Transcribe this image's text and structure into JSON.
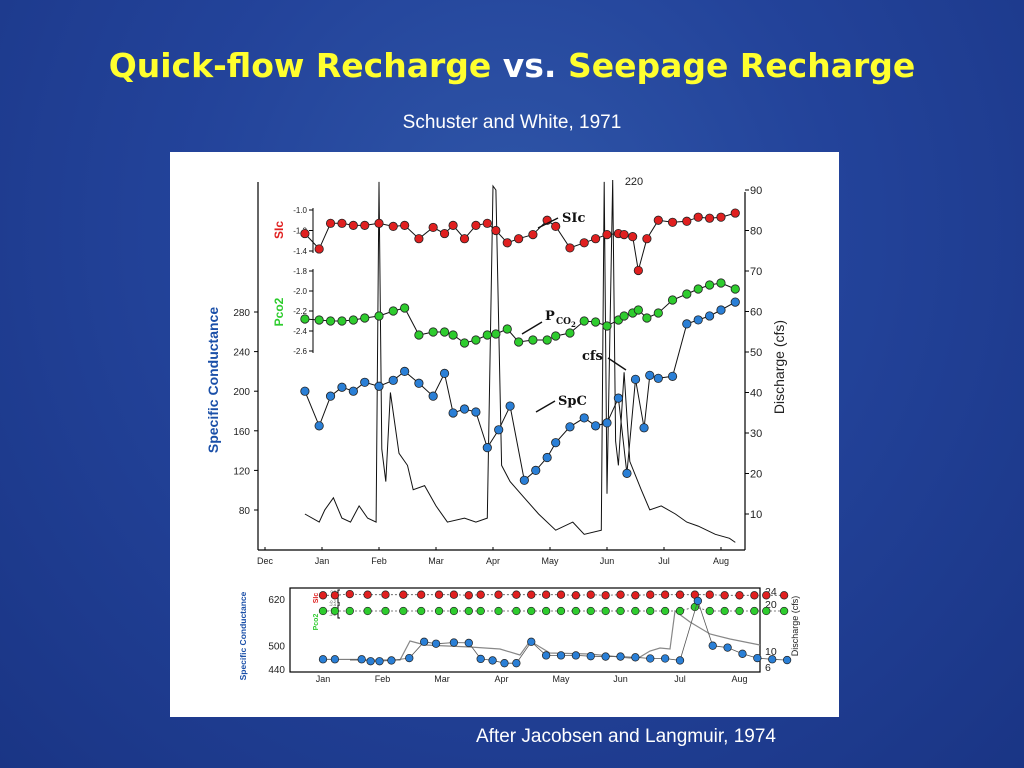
{
  "title": {
    "part1": "Quick-flow Recharge",
    "connector": "vs.",
    "part2": "Seepage Recharge"
  },
  "subtitle": "Schuster and White, 1971",
  "caption": "After Jacobsen and Langmuir, 1974",
  "colors": {
    "title_yellow": "#ffff2e",
    "background": "#23439a",
    "sic_red": "#e02020",
    "pco2_green": "#2ecc2e",
    "spc_blue": "#2a7fd6",
    "axis_blue": "#1a4fa8"
  },
  "chart_data": [
    {
      "type": "line",
      "x_categories": [
        "Dec",
        "Jan",
        "Feb",
        "Mar",
        "Apr",
        "May",
        "Jun",
        "Jul",
        "Aug"
      ],
      "axes": {
        "spc": {
          "label": "Specific Conductance",
          "ticks": [
            "280",
            "240",
            "200",
            "160",
            "120",
            "80"
          ],
          "range": [
            60,
            300
          ]
        },
        "sic": {
          "label": "SIc",
          "ticks": [
            "-1.0",
            "-1.2",
            "-1.4"
          ],
          "range": [
            -1.45,
            -0.95
          ]
        },
        "pco2": {
          "label": "Pco2",
          "ticks": [
            "-1.8",
            "-2.0",
            "-2.2",
            "-2.4",
            "-2.6"
          ],
          "range": [
            -2.65,
            -1.75
          ]
        },
        "discharge": {
          "label": "Discharge (cfs)",
          "ticks": [
            "90",
            "80",
            "70",
            "60",
            "50",
            "40",
            "30",
            "20",
            "10"
          ],
          "range": [
            5,
            93
          ]
        }
      },
      "annotations": {
        "sic": "SIc",
        "pco2": "P",
        "pco2_sub": "CO",
        "pco2_sub2": "2",
        "cfs": "cfs",
        "spc": "SpC",
        "peak": "220"
      },
      "series": [
        {
          "name": "SIc",
          "x": [
            0.7,
            0.95,
            1.15,
            1.35,
            1.55,
            1.75,
            2.0,
            2.25,
            2.45,
            2.7,
            2.95,
            3.15,
            3.3,
            3.5,
            3.7,
            3.9,
            4.05,
            4.25,
            4.45,
            4.7,
            4.95,
            5.1,
            5.35,
            5.6,
            5.8,
            6.0,
            6.2,
            6.3,
            6.45,
            6.55,
            6.7,
            6.9,
            7.15,
            7.4,
            7.6,
            7.8,
            8.0,
            8.25
          ],
          "values": [
            -1.23,
            -1.38,
            -1.13,
            -1.13,
            -1.15,
            -1.15,
            -1.13,
            -1.16,
            -1.15,
            -1.28,
            -1.17,
            -1.23,
            -1.15,
            -1.28,
            -1.15,
            -1.13,
            -1.2,
            -1.32,
            -1.28,
            -1.24,
            -1.1,
            -1.16,
            -1.37,
            -1.32,
            -1.28,
            -1.24,
            -1.23,
            -1.24,
            -1.26,
            -1.59,
            -1.28,
            -1.1,
            -1.12,
            -1.11,
            -1.07,
            -1.08,
            -1.07,
            -1.03
          ],
          "values_clip_low": -1.45
        },
        {
          "name": "Pco2",
          "x": [
            0.7,
            0.95,
            1.15,
            1.35,
            1.55,
            1.75,
            2.0,
            2.25,
            2.45,
            2.7,
            2.95,
            3.15,
            3.3,
            3.5,
            3.7,
            3.9,
            4.05,
            4.25,
            4.45,
            4.7,
            4.95,
            5.1,
            5.35,
            5.6,
            5.8,
            6.0,
            6.2,
            6.3,
            6.45,
            6.55,
            6.7,
            6.9,
            7.15,
            7.4,
            7.6,
            7.8,
            8.0,
            8.25
          ],
          "values": [
            -2.28,
            -2.29,
            -2.3,
            -2.3,
            -2.29,
            -2.27,
            -2.25,
            -2.2,
            -2.17,
            -2.44,
            -2.41,
            -2.41,
            -2.44,
            -2.52,
            -2.49,
            -2.44,
            -2.43,
            -2.38,
            -2.51,
            -2.49,
            -2.49,
            -2.45,
            -2.42,
            -2.3,
            -2.31,
            -2.35,
            -2.29,
            -2.25,
            -2.22,
            -2.19,
            -2.27,
            -2.22,
            -2.09,
            -2.03,
            -1.98,
            -1.94,
            -1.92,
            -1.98
          ]
        },
        {
          "name": "SpC",
          "x": [
            0.7,
            0.95,
            1.15,
            1.35,
            1.55,
            1.75,
            2.0,
            2.25,
            2.45,
            2.7,
            2.95,
            3.15,
            3.3,
            3.5,
            3.7,
            3.9,
            4.1,
            4.3,
            4.55,
            4.75,
            4.95,
            5.1,
            5.35,
            5.6,
            5.8,
            6.0,
            6.2,
            6.35,
            6.5,
            6.65,
            6.75,
            6.9,
            7.15,
            7.4,
            7.6,
            7.8,
            8.0,
            8.25
          ],
          "values": [
            200,
            165,
            195,
            204,
            200,
            209,
            205,
            211,
            220,
            208,
            195,
            218,
            178,
            182,
            179,
            143,
            161,
            185,
            110,
            120,
            133,
            148,
            164,
            173,
            165,
            168,
            193,
            117,
            212,
            163,
            216,
            213,
            215,
            268,
            272,
            276,
            282,
            290
          ]
        },
        {
          "name": "cfs",
          "x": [
            0.7,
            0.95,
            1.05,
            1.2,
            1.35,
            1.5,
            1.65,
            1.8,
            1.95,
            2.0,
            2.05,
            2.12,
            2.2,
            2.35,
            2.5,
            2.6,
            2.8,
            3.0,
            3.2,
            3.5,
            3.7,
            3.9,
            4.0,
            4.05,
            4.15,
            4.3,
            4.55,
            4.8,
            5.1,
            5.4,
            5.6,
            5.9,
            5.95,
            6.0,
            6.1,
            6.15,
            6.2,
            6.3,
            6.4,
            6.6,
            6.75,
            6.95,
            7.2,
            7.4,
            7.6,
            7.9,
            8.15,
            8.25
          ],
          "values": [
            10,
            8,
            11,
            14,
            9,
            8,
            12,
            9,
            8,
            92,
            26,
            18,
            40,
            25,
            22,
            16,
            17,
            12,
            8,
            9,
            8,
            9,
            91,
            90,
            22,
            18,
            14,
            10,
            6,
            8,
            5,
            6,
            92,
            15,
            95,
            28,
            22,
            45,
            23,
            16,
            11,
            12,
            10,
            8,
            7,
            5,
            4,
            3
          ]
        }
      ]
    },
    {
      "type": "line",
      "x_categories": [
        "Jan",
        "Feb",
        "Mar",
        "Apr",
        "May",
        "Jun",
        "Jul",
        "Aug"
      ],
      "axes": {
        "spc": {
          "label": "Specific Conductance",
          "ticks": [
            "620",
            "500",
            "440"
          ],
          "range": [
            430,
            640
          ]
        },
        "sic": {
          "label": "SIc",
          "ticks": [
            "0.2",
            "0",
            "-0.2"
          ]
        },
        "pco2": {
          "label": "Pco2",
          "ticks": [
            "-2.4",
            "-1.9",
            "-2.1"
          ]
        },
        "discharge": {
          "label": "Discharge (cfs)",
          "ticks": [
            "24",
            "20",
            "10",
            "6"
          ]
        }
      },
      "series": [
        {
          "name": "SIc",
          "x": [
            0.55,
            0.75,
            1.0,
            1.3,
            1.6,
            1.9,
            2.2,
            2.5,
            2.75,
            3.0,
            3.2,
            3.5,
            3.8,
            4.05,
            4.3,
            4.55,
            4.8,
            5.05,
            5.3,
            5.55,
            5.8,
            6.05,
            6.3,
            6.55,
            6.8,
            7.05,
            7.3,
            7.55,
            7.8,
            8.0,
            8.3
          ],
          "values": [
            0.03,
            0.03,
            0.05,
            0.04,
            0.04,
            0.04,
            0.04,
            0.04,
            0.04,
            0.03,
            0.04,
            0.04,
            0.04,
            0.04,
            0.04,
            0.04,
            0.03,
            0.04,
            0.03,
            0.04,
            0.03,
            0.04,
            0.04,
            0.04,
            0.04,
            0.04,
            0.03,
            0.03,
            0.03,
            0.03,
            0.03
          ]
        },
        {
          "name": "Pco2",
          "x": [
            0.55,
            0.75,
            1.0,
            1.3,
            1.6,
            1.9,
            2.2,
            2.5,
            2.75,
            3.0,
            3.2,
            3.5,
            3.8,
            4.05,
            4.3,
            4.55,
            4.8,
            5.05,
            5.3,
            5.55,
            5.8,
            6.05,
            6.3,
            6.55,
            6.8,
            7.05,
            7.3,
            7.55,
            7.8,
            8.0,
            8.3
          ],
          "values": [
            -2.16,
            -2.16,
            -2.16,
            -2.16,
            -2.16,
            -2.16,
            -2.15,
            -2.16,
            -2.16,
            -2.16,
            -2.16,
            -2.16,
            -2.16,
            -2.16,
            -2.16,
            -2.16,
            -2.16,
            -2.16,
            -2.16,
            -2.16,
            -2.16,
            -2.16,
            -2.16,
            -2.16,
            -2.11,
            -2.16,
            -2.16,
            -2.16,
            -2.16,
            -2.16,
            -2.16
          ]
        },
        {
          "name": "SpC",
          "x": [
            0.55,
            0.75,
            1.2,
            1.35,
            1.5,
            1.7,
            2.0,
            2.25,
            2.45,
            2.75,
            3.0,
            3.2,
            3.4,
            3.6,
            3.8,
            4.05,
            4.3,
            4.55,
            4.8,
            5.05,
            5.3,
            5.55,
            5.8,
            6.05,
            6.3,
            6.55,
            6.85,
            7.1,
            7.35,
            7.6,
            7.85,
            8.1,
            8.35
          ],
          "values": [
            465,
            465,
            465,
            460,
            460,
            462,
            468,
            510,
            505,
            508,
            507,
            466,
            462,
            455,
            455,
            510,
            475,
            475,
            475,
            473,
            472,
            472,
            470,
            467,
            467,
            462,
            615,
            500,
            495,
            479,
            468,
            465,
            463
          ]
        }
      ]
    }
  ]
}
